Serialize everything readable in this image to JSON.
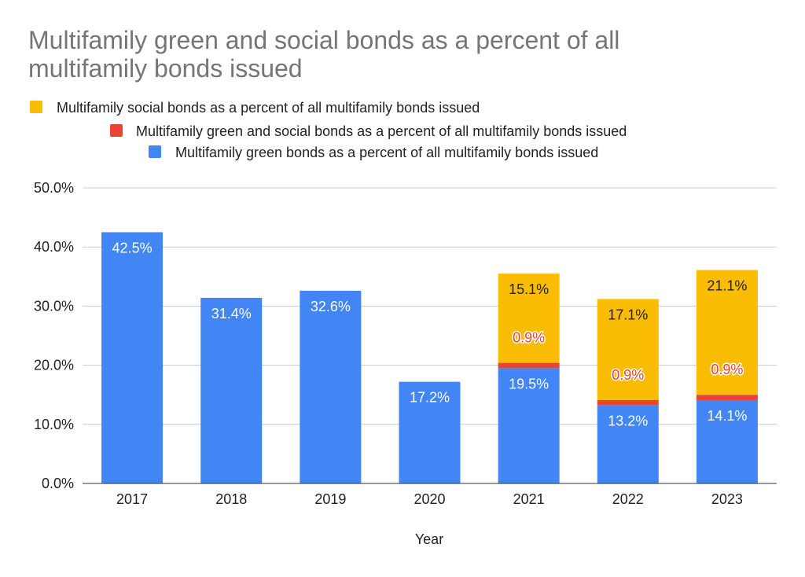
{
  "chart_data": {
    "type": "bar",
    "stacked": true,
    "title": "Multifamily green and social bonds as a percent of all multifamily bonds issued",
    "xlabel": "Year",
    "ylabel": "",
    "ylim": [
      0,
      50
    ],
    "yticks": [
      "0.0%",
      "10.0%",
      "20.0%",
      "30.0%",
      "40.0%",
      "50.0%"
    ],
    "categories": [
      "2017",
      "2018",
      "2019",
      "2020",
      "2021",
      "2022",
      "2023"
    ],
    "series": [
      {
        "name": "Multifamily green bonds as a percent of all multifamily bonds issued",
        "color": "#4285f4",
        "label_color": "#ffffff",
        "values": [
          42.5,
          31.4,
          32.6,
          17.2,
          19.5,
          13.2,
          14.1
        ],
        "labels": [
          "42.5%",
          "31.4%",
          "32.6%",
          "17.2%",
          "19.5%",
          "13.2%",
          "14.1%"
        ]
      },
      {
        "name": "Multifamily green and social bonds as a percent of all multifamily bonds issued",
        "color": "#ea4335",
        "label_color": "#ea4335",
        "values": [
          0,
          0,
          0,
          0,
          0.9,
          0.9,
          0.9
        ],
        "labels": [
          "",
          "",
          "",
          "",
          "0.9%",
          "0.9%",
          "0.9%"
        ]
      },
      {
        "name": "Multifamily social bonds as a percent of all multifamily bonds issued",
        "color": "#fbbc04",
        "label_color": "#222222",
        "values": [
          0,
          0,
          0,
          0,
          15.1,
          17.1,
          21.1
        ],
        "labels": [
          "",
          "",
          "",
          "",
          "15.1%",
          "17.1%",
          "21.1%"
        ]
      }
    ],
    "legend": {
      "placement": "top",
      "entries": [
        "Multifamily social bonds as a percent of all multifamily bonds issued",
        "Multifamily green and social bonds as a percent of all multifamily bonds issued",
        "Multifamily green bonds as a percent of all multifamily bonds issued"
      ],
      "colors": [
        "#fbbc04",
        "#ea4335",
        "#4285f4"
      ]
    },
    "grid": true
  },
  "title_lines": [
    "Multifamily green and social bonds as a percent of all",
    "multifamily bonds issued"
  ]
}
